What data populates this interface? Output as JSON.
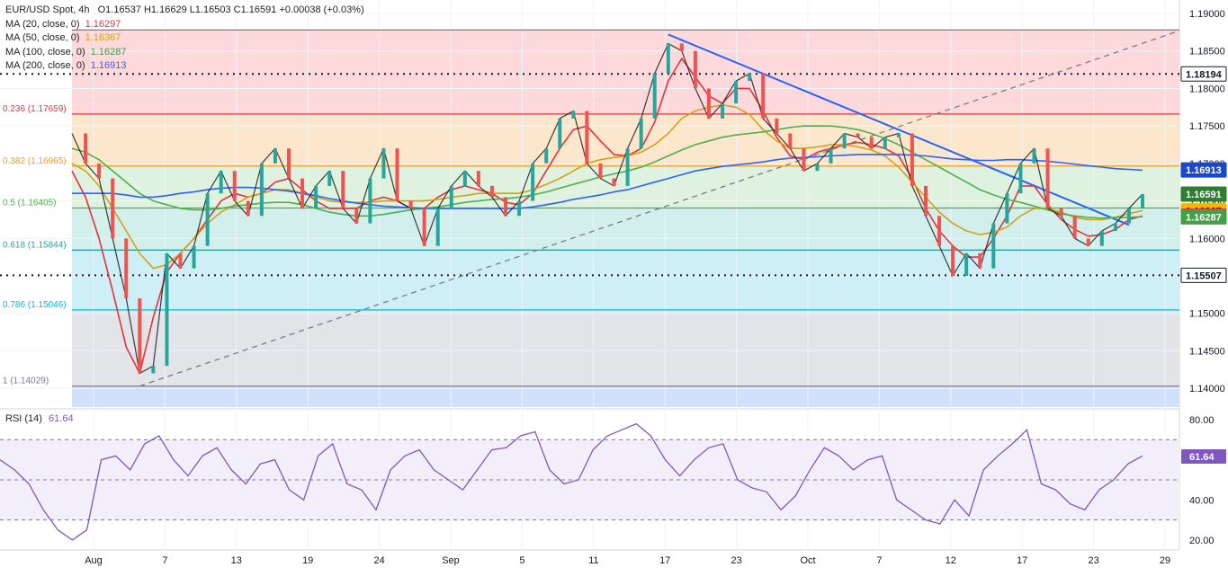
{
  "header": {
    "symbol": "EUR/USD Spot, 4h",
    "ohlc": "O1.16537 H1.16629 L1.16503 C1.16591 +0.00038 (+0.03%)"
  },
  "legend": [
    {
      "label": "MA (20, close, 0)",
      "value": "1.16297",
      "color": "#e5323c"
    },
    {
      "label": "MA (50, close, 0)",
      "value": "1.16367",
      "color": "#d4a017"
    },
    {
      "label": "MA (100, close, 0)",
      "value": "1.16287",
      "color": "#4caf50"
    },
    {
      "label": "MA (200, close, 0)",
      "value": "1.16913",
      "color": "#2962ff"
    }
  ],
  "rsi_legend": {
    "label": "RSI (14)",
    "value": "61.64"
  },
  "chart_data": [
    {
      "type": "line",
      "title": "EUR/USD Spot, 4h",
      "ylim": [
        1.1375,
        1.1918
      ],
      "price_ticks": [
        "1.19000",
        "1.18500",
        "1.18000",
        "1.17500",
        "1.17000",
        "1.16500",
        "1.16000",
        "1.15500",
        "1.15000",
        "1.14500",
        "1.14000"
      ],
      "x_ticks": [
        "Aug",
        "7",
        "13",
        "19",
        "24",
        "Sep",
        "5",
        "11",
        "17",
        "23",
        "Oct",
        "7",
        "12",
        "17",
        "23",
        "29"
      ],
      "fib_levels": [
        {
          "label": "0.236 (1.17659)",
          "value": 1.17659,
          "color": "#e5323c"
        },
        {
          "label": "0.382 (1.16965)",
          "value": 1.16965,
          "color": "#f59a23"
        },
        {
          "label": "0.5 (1.16405)",
          "value": 1.16405,
          "color": "#4caf50"
        },
        {
          "label": "0.618 (1.15844)",
          "value": 1.15844,
          "color": "#26a69a"
        },
        {
          "label": "0.786 (1.15046)",
          "value": 1.15046,
          "color": "#00bcd4"
        },
        {
          "label": "1 (1.14029)",
          "value": 1.14029,
          "color": "#787b86"
        }
      ],
      "top_level": {
        "value": 1.1878
      },
      "dotted_levels": [
        1.18194,
        1.15507
      ],
      "price_labels": [
        {
          "text": "1.18194",
          "value": 1.18194,
          "bg": "#ffffff",
          "fg": "#131722",
          "border": "#131722"
        },
        {
          "text": "1.16913",
          "value": 1.16913,
          "bg": "#1848cc",
          "fg": "#ffffff",
          "border": "#1848cc"
        },
        {
          "text": "1.16591",
          "value": 1.16591,
          "bg": "#2e7d32",
          "fg": "#ffffff",
          "border": "#2e7d32"
        },
        {
          "text": "1.16367",
          "value": 1.16367,
          "bg": "#f2b705",
          "fg": "#131722",
          "border": "#f2b705"
        },
        {
          "text": "1.16297",
          "value": 1.16297,
          "bg": "#e5323c",
          "fg": "#ffffff",
          "border": "#e5323c"
        },
        {
          "text": "1.16287",
          "value": 1.16287,
          "bg": "#43a047",
          "fg": "#ffffff",
          "border": "#43a047"
        },
        {
          "text": "1.15507",
          "value": 1.15507,
          "bg": "#ffffff",
          "fg": "#131722",
          "border": "#131722"
        }
      ],
      "series": [
        {
          "name": "MA (20, close, 0)",
          "color": "#e5323c",
          "values": [
            1.169,
            1.1655,
            1.16,
            1.153,
            1.1455,
            1.142,
            1.1495,
            1.1555,
            1.158,
            1.16,
            1.1625,
            1.165,
            1.166,
            1.1655,
            1.166,
            1.1675,
            1.168,
            1.1665,
            1.165,
            1.164,
            1.164,
            1.164,
            1.165,
            1.1655,
            1.165,
            1.164,
            1.164,
            1.1655,
            1.1665,
            1.167,
            1.1665,
            1.166,
            1.1648,
            1.1645,
            1.166,
            1.169,
            1.172,
            1.1745,
            1.175,
            1.173,
            1.1712,
            1.171,
            1.172,
            1.1755,
            1.181,
            1.184,
            1.1815,
            1.179,
            1.178,
            1.18,
            1.18,
            1.177,
            1.1735,
            1.171,
            1.1705,
            1.1715,
            1.172,
            1.1725,
            1.1728,
            1.1725,
            1.172,
            1.171,
            1.168,
            1.164,
            1.161,
            1.159,
            1.1575,
            1.1575,
            1.16,
            1.163,
            1.167,
            1.167,
            1.1645,
            1.1625,
            1.1612,
            1.1603,
            1.1605,
            1.1612,
            1.1625,
            1.163
          ]
        },
        {
          "name": "MA (50, close, 0)",
          "color": "#d4a017",
          "values": [
            1.17,
            1.169,
            1.167,
            1.164,
            1.161,
            1.158,
            1.156,
            1.1565,
            1.158,
            1.16,
            1.162,
            1.1635,
            1.1645,
            1.1655,
            1.166,
            1.1665,
            1.1665,
            1.166,
            1.1655,
            1.165,
            1.1648,
            1.1648,
            1.1648,
            1.165,
            1.165,
            1.165,
            1.165,
            1.1652,
            1.1655,
            1.1657,
            1.166,
            1.166,
            1.166,
            1.166,
            1.1665,
            1.1672,
            1.168,
            1.169,
            1.17,
            1.1705,
            1.1708,
            1.171,
            1.1715,
            1.1725,
            1.174,
            1.176,
            1.177,
            1.1775,
            1.1778,
            1.1775,
            1.1765,
            1.1745,
            1.173,
            1.172,
            1.172,
            1.1722,
            1.1725,
            1.1725,
            1.1722,
            1.1718,
            1.171,
            1.1695,
            1.1675,
            1.1655,
            1.1635,
            1.162,
            1.161,
            1.1605,
            1.1608,
            1.1615,
            1.163,
            1.164,
            1.164,
            1.1635,
            1.1628,
            1.1625,
            1.1625,
            1.1628,
            1.1633,
            1.1637
          ]
        },
        {
          "name": "MA (100, close, 0)",
          "color": "#4caf50",
          "values": [
            1.172,
            1.1715,
            1.1705,
            1.169,
            1.1675,
            1.166,
            1.165,
            1.1645,
            1.164,
            1.1638,
            1.1638,
            1.164,
            1.1643,
            1.1645,
            1.1647,
            1.1648,
            1.1648,
            1.1645,
            1.164,
            1.1635,
            1.1632,
            1.163,
            1.163,
            1.1632,
            1.1635,
            1.1638,
            1.164,
            1.1642,
            1.1645,
            1.1648,
            1.165,
            1.1652,
            1.1653,
            1.1655,
            1.1658,
            1.1662,
            1.1667,
            1.1672,
            1.1677,
            1.1682,
            1.1686,
            1.169,
            1.1695,
            1.1702,
            1.171,
            1.1718,
            1.1725,
            1.173,
            1.1735,
            1.1738,
            1.174,
            1.1742,
            1.1745,
            1.1748,
            1.175,
            1.175,
            1.175,
            1.1748,
            1.1745,
            1.174,
            1.1733,
            1.1725,
            1.1715,
            1.1705,
            1.1695,
            1.1685,
            1.1675,
            1.1665,
            1.1658,
            1.1652,
            1.1648,
            1.1643,
            1.1638,
            1.1633,
            1.163,
            1.1628,
            1.1627,
            1.1628,
            1.1628,
            1.1629
          ]
        },
        {
          "name": "MA (200, close, 0)",
          "color": "#2962ff",
          "values": [
            1.166,
            1.166,
            1.166,
            1.166,
            1.1658,
            1.1655,
            1.1655,
            1.1657,
            1.166,
            1.1662,
            1.1665,
            1.1667,
            1.1668,
            1.1668,
            1.1667,
            1.1665,
            1.1663,
            1.166,
            1.1657,
            1.1653,
            1.165,
            1.1647,
            1.1645,
            1.1643,
            1.1642,
            1.1641,
            1.164,
            1.164,
            1.164,
            1.164,
            1.164,
            1.164,
            1.164,
            1.164,
            1.1642,
            1.1645,
            1.1648,
            1.1652,
            1.1655,
            1.1658,
            1.1662,
            1.1665,
            1.167,
            1.1675,
            1.168,
            1.1685,
            1.169,
            1.1693,
            1.1696,
            1.1698,
            1.17,
            1.1702,
            1.1705,
            1.1707,
            1.1708,
            1.1709,
            1.171,
            1.1711,
            1.1712,
            1.1712,
            1.1712,
            1.1712,
            1.1711,
            1.171,
            1.1708,
            1.1706,
            1.1705,
            1.1704,
            1.1704,
            1.1705,
            1.1705,
            1.1704,
            1.1703,
            1.1701,
            1.1699,
            1.1697,
            1.1695,
            1.1693,
            1.1692,
            1.1691
          ]
        },
        {
          "name": "Price",
          "color": "#1b1b1b",
          "values": [
            1.174,
            1.17,
            1.168,
            1.16,
            1.152,
            1.142,
            1.143,
            1.158,
            1.156,
            1.159,
            1.166,
            1.169,
            1.165,
            1.163,
            1.17,
            1.172,
            1.168,
            1.164,
            1.167,
            1.169,
            1.164,
            1.162,
            1.168,
            1.172,
            1.165,
            1.164,
            1.159,
            1.164,
            1.167,
            1.169,
            1.167,
            1.1655,
            1.163,
            1.165,
            1.17,
            1.172,
            1.176,
            1.177,
            1.17,
            1.168,
            1.167,
            1.172,
            1.176,
            1.182,
            1.186,
            1.185,
            1.18,
            1.176,
            1.178,
            1.181,
            1.182,
            1.176,
            1.174,
            1.172,
            1.169,
            1.17,
            1.172,
            1.174,
            1.1735,
            1.172,
            1.1735,
            1.174,
            1.167,
            1.163,
            1.159,
            1.155,
            1.158,
            1.156,
            1.162,
            1.166,
            1.17,
            1.172,
            1.164,
            1.163,
            1.16,
            1.159,
            1.161,
            1.162,
            1.164,
            1.1659
          ]
        }
      ]
    },
    {
      "type": "line",
      "title": "RSI (14)",
      "ylim": [
        15,
        85
      ],
      "y_ticks": [
        "80.00",
        "60.00",
        "40.00",
        "20.00"
      ],
      "guides": [
        70,
        50,
        30
      ],
      "current": {
        "text": "61.64",
        "value": 61.64
      },
      "series": [
        {
          "name": "RSI (14)",
          "color": "#7e57c2",
          "values": [
            60,
            55,
            48,
            35,
            25,
            20,
            25,
            60,
            62,
            55,
            68,
            72,
            60,
            52,
            62,
            66,
            55,
            48,
            58,
            60,
            45,
            40,
            62,
            68,
            48,
            45,
            35,
            55,
            62,
            65,
            55,
            50,
            45,
            55,
            65,
            66,
            72,
            74,
            55,
            48,
            50,
            65,
            72,
            75,
            78,
            72,
            60,
            52,
            60,
            66,
            68,
            50,
            46,
            44,
            35,
            42,
            55,
            66,
            62,
            55,
            60,
            62,
            40,
            35,
            30,
            28,
            40,
            32,
            55,
            62,
            68,
            75,
            48,
            45,
            38,
            35,
            45,
            50,
            58,
            62
          ]
        }
      ]
    }
  ]
}
